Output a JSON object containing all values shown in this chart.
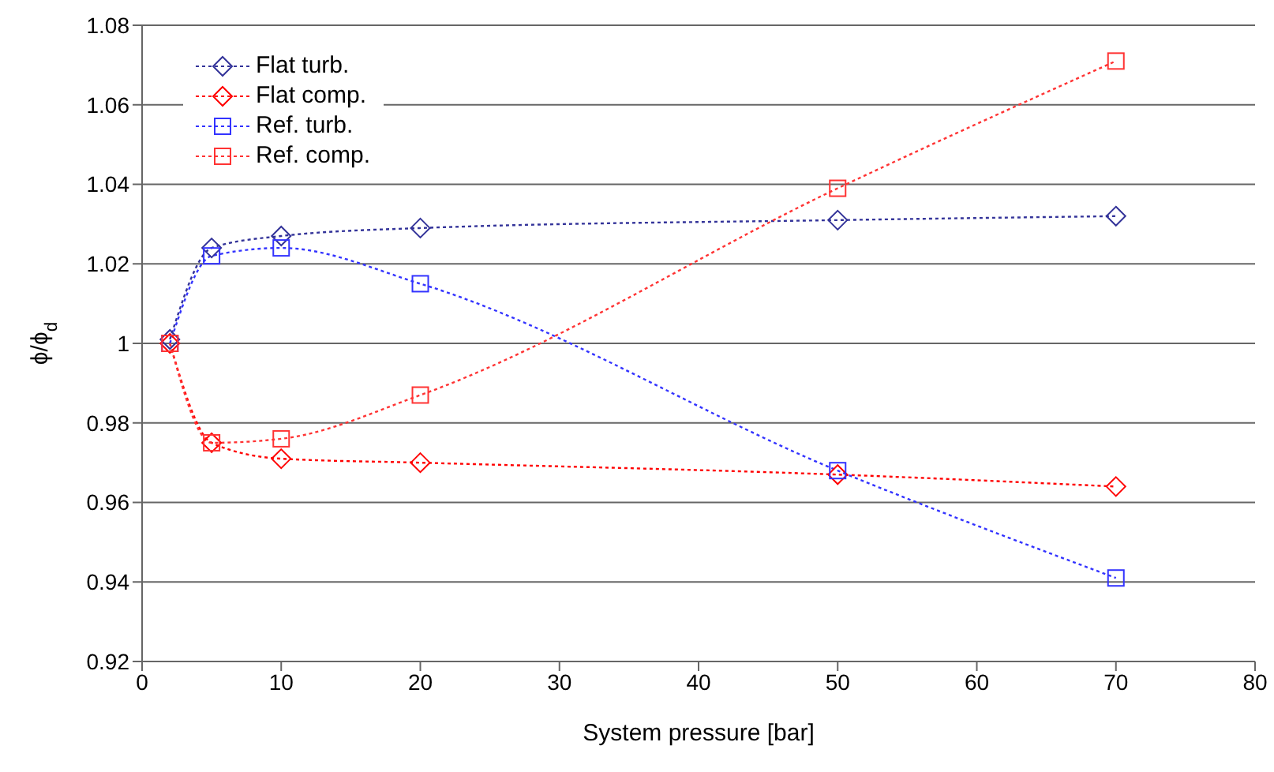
{
  "chart_data": {
    "type": "line",
    "xlabel": "System pressure [bar]",
    "ylabel": "ϕ/ϕ$_{d}$",
    "x": [
      2,
      5,
      10,
      20,
      50,
      70
    ],
    "series": [
      {
        "name": "Flat turb.",
        "color": "#333399",
        "marker": "diamond",
        "values": [
          1.001,
          1.024,
          1.027,
          1.029,
          1.031,
          1.032
        ]
      },
      {
        "name": "Flat comp.",
        "color": "#ff0000",
        "marker": "diamond",
        "values": [
          1.0,
          0.975,
          0.971,
          0.97,
          0.967,
          0.964
        ]
      },
      {
        "name": "Ref. turb.",
        "color": "#3333ff",
        "marker": "square",
        "values": [
          1.0,
          1.022,
          1.024,
          1.015,
          0.968,
          0.941
        ]
      },
      {
        "name": "Ref. comp.",
        "color": "#ff3333",
        "marker": "square",
        "values": [
          1.0,
          0.975,
          0.976,
          0.987,
          1.039,
          1.071
        ]
      }
    ],
    "xlim": [
      0,
      80
    ],
    "xticks": [
      0,
      10,
      20,
      30,
      40,
      50,
      60,
      70,
      80
    ],
    "ylim": [
      0.92,
      1.08
    ],
    "yticks": [
      0.92,
      0.94,
      0.96,
      0.98,
      1,
      1.02,
      1.04,
      1.06,
      1.08
    ],
    "grid": "y",
    "legend": "top left",
    "line_style": "dotted"
  }
}
